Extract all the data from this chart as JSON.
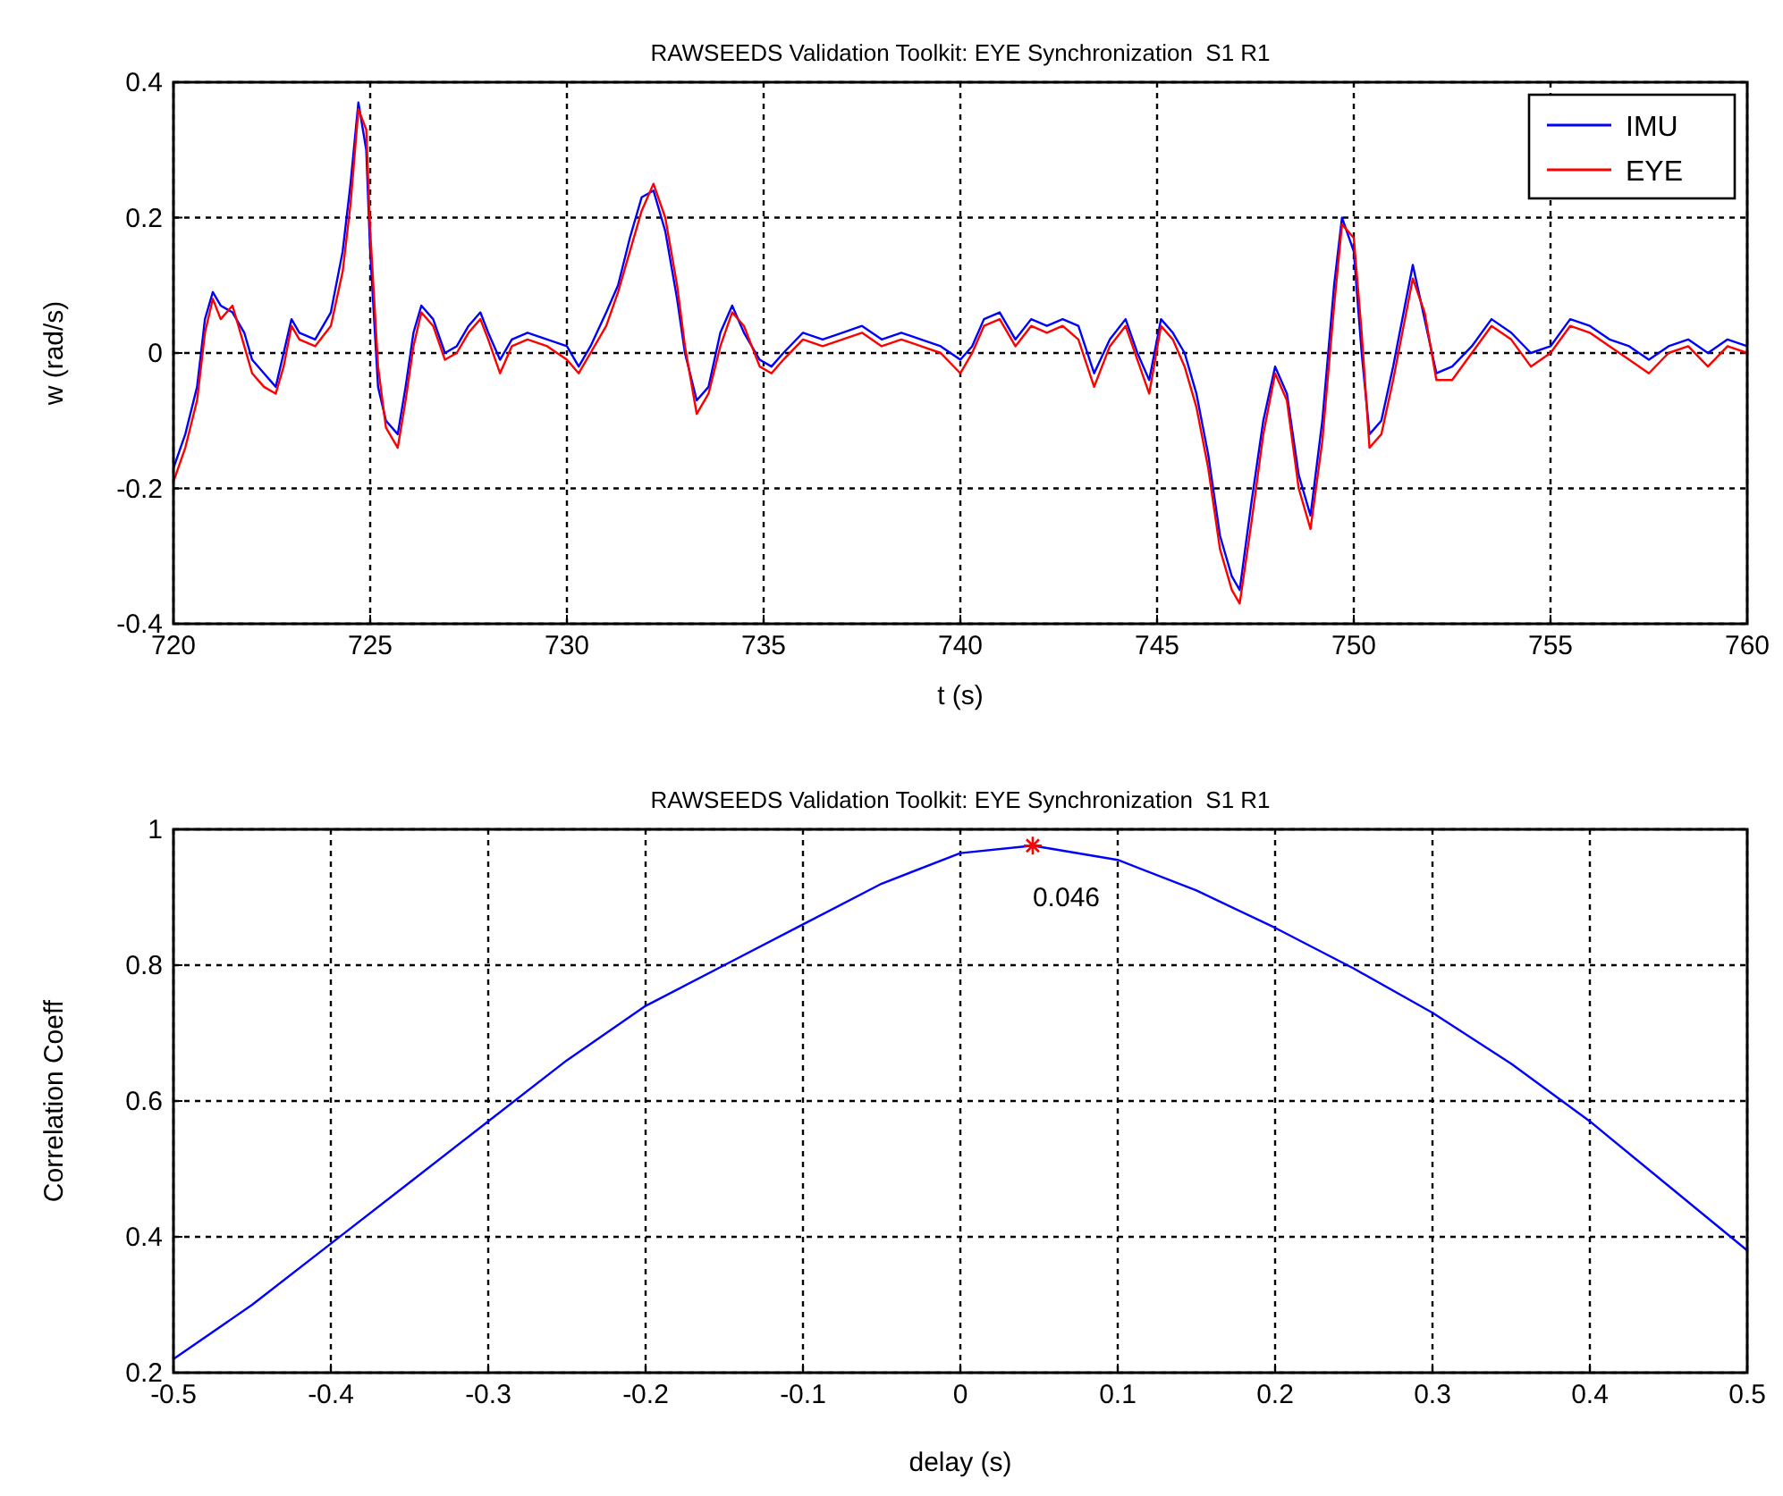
{
  "chart_data": [
    {
      "type": "line",
      "title": "RAWSEEDS Validation Toolkit: EYE Synchronization  S1 R1",
      "xlabel": "t (s)",
      "ylabel": "w (rad/s)",
      "xlim": [
        720,
        760
      ],
      "xticks": [
        720,
        725,
        730,
        735,
        740,
        745,
        750,
        755,
        760
      ],
      "ylim": [
        -0.4,
        0.4
      ],
      "yticks": [
        -0.4,
        -0.2,
        0,
        0.2,
        0.4
      ],
      "grid": true,
      "legend": "top right",
      "x": [
        720,
        720.3,
        720.6,
        720.8,
        721,
        721.2,
        721.5,
        721.8,
        722,
        722.3,
        722.6,
        722.8,
        723,
        723.2,
        723.6,
        724,
        724.3,
        724.5,
        724.7,
        724.9,
        725,
        725.2,
        725.4,
        725.7,
        725.9,
        726.1,
        726.3,
        726.6,
        726.9,
        727.2,
        727.5,
        727.8,
        728,
        728.3,
        728.6,
        729,
        729.5,
        730,
        730.3,
        730.6,
        731,
        731.3,
        731.6,
        731.9,
        732.2,
        732.5,
        732.8,
        733,
        733.3,
        733.6,
        733.9,
        734.2,
        734.5,
        734.9,
        735.2,
        735.5,
        736,
        736.5,
        737,
        737.5,
        738,
        738.5,
        739,
        739.5,
        740,
        740.3,
        740.6,
        741,
        741.4,
        741.8,
        742.2,
        742.6,
        743,
        743.4,
        743.8,
        744.2,
        744.5,
        744.8,
        745.1,
        745.4,
        745.7,
        746,
        746.3,
        746.6,
        746.9,
        747.1,
        747.4,
        747.7,
        748,
        748.3,
        748.6,
        748.9,
        749.2,
        749.5,
        749.7,
        750,
        750.2,
        750.4,
        750.7,
        751,
        751.3,
        751.5,
        751.8,
        752.1,
        752.5,
        753,
        753.5,
        754,
        754.5,
        755,
        755.5,
        756,
        756.5,
        757,
        757.5,
        758,
        758.5,
        759,
        759.5,
        760
      ],
      "series": [
        {
          "name": "IMU",
          "color": "#0000ff",
          "values": [
            -0.17,
            -0.12,
            -0.05,
            0.05,
            0.09,
            0.07,
            0.06,
            0.03,
            -0.01,
            -0.03,
            -0.05,
            0,
            0.05,
            0.03,
            0.02,
            0.06,
            0.15,
            0.25,
            0.37,
            0.3,
            0.15,
            -0.05,
            -0.1,
            -0.12,
            -0.05,
            0.03,
            0.07,
            0.05,
            0,
            0.01,
            0.04,
            0.06,
            0.03,
            -0.01,
            0.02,
            0.03,
            0.02,
            0.01,
            -0.02,
            0.01,
            0.06,
            0.1,
            0.17,
            0.23,
            0.24,
            0.18,
            0.08,
            0,
            -0.07,
            -0.05,
            0.03,
            0.07,
            0.03,
            -0.01,
            -0.02,
            0,
            0.03,
            0.02,
            0.03,
            0.04,
            0.02,
            0.03,
            0.02,
            0.01,
            -0.01,
            0.01,
            0.05,
            0.06,
            0.02,
            0.05,
            0.04,
            0.05,
            0.04,
            -0.03,
            0.02,
            0.05,
            0,
            -0.04,
            0.05,
            0.03,
            0,
            -0.06,
            -0.15,
            -0.27,
            -0.33,
            -0.35,
            -0.22,
            -0.1,
            -0.02,
            -0.06,
            -0.18,
            -0.24,
            -0.1,
            0.1,
            0.2,
            0.15,
            0,
            -0.12,
            -0.1,
            -0.02,
            0.07,
            0.13,
            0.05,
            -0.03,
            -0.02,
            0.01,
            0.05,
            0.03,
            0,
            0.01,
            0.05,
            0.04,
            0.02,
            0.01,
            -0.01,
            0.01,
            0.02,
            0,
            0.02,
            0.01
          ]
        },
        {
          "name": "EYE",
          "color": "#ff0000",
          "values": [
            -0.19,
            -0.14,
            -0.07,
            0.03,
            0.08,
            0.05,
            0.07,
            0.01,
            -0.03,
            -0.05,
            -0.06,
            -0.02,
            0.04,
            0.02,
            0.01,
            0.04,
            0.12,
            0.22,
            0.36,
            0.33,
            0.18,
            -0.02,
            -0.11,
            -0.14,
            -0.07,
            0.01,
            0.06,
            0.04,
            -0.01,
            0,
            0.03,
            0.05,
            0.02,
            -0.03,
            0.01,
            0.02,
            0.01,
            -0.01,
            -0.03,
            0,
            0.04,
            0.09,
            0.15,
            0.21,
            0.25,
            0.2,
            0.1,
            0.01,
            -0.09,
            -0.06,
            0.01,
            0.06,
            0.04,
            -0.02,
            -0.03,
            -0.01,
            0.02,
            0.01,
            0.02,
            0.03,
            0.01,
            0.02,
            0.01,
            0,
            -0.03,
            0,
            0.04,
            0.05,
            0.01,
            0.04,
            0.03,
            0.04,
            0.02,
            -0.05,
            0.01,
            0.04,
            -0.01,
            -0.06,
            0.04,
            0.02,
            -0.02,
            -0.08,
            -0.17,
            -0.29,
            -0.35,
            -0.37,
            -0.25,
            -0.12,
            -0.03,
            -0.07,
            -0.2,
            -0.26,
            -0.13,
            0.07,
            0.19,
            0.17,
            0.03,
            -0.14,
            -0.12,
            -0.04,
            0.05,
            0.11,
            0.06,
            -0.04,
            -0.04,
            0,
            0.04,
            0.02,
            -0.02,
            0,
            0.04,
            0.03,
            0.01,
            -0.01,
            -0.03,
            0,
            0.01,
            -0.02,
            0.01,
            0
          ]
        }
      ]
    },
    {
      "type": "line",
      "title": "RAWSEEDS Validation Toolkit: EYE Synchronization  S1 R1",
      "xlabel": "delay (s)",
      "ylabel": "Correlation Coeff",
      "xlim": [
        -0.5,
        0.5
      ],
      "xticks": [
        -0.5,
        -0.4,
        -0.3,
        -0.2,
        -0.1,
        0,
        0.1,
        0.2,
        0.3,
        0.4,
        0.5
      ],
      "ylim": [
        0.2,
        1
      ],
      "yticks": [
        0.2,
        0.4,
        0.6,
        0.8,
        1
      ],
      "grid": true,
      "annotations": [
        {
          "text": "0.046",
          "x": 0.046,
          "y": 0.976
        }
      ],
      "series": [
        {
          "color": "#0000ff",
          "x": [
            -0.5,
            -0.45,
            -0.4,
            -0.35,
            -0.3,
            -0.25,
            -0.2,
            -0.15,
            -0.1,
            -0.05,
            0,
            0.046,
            0.1,
            0.15,
            0.2,
            0.25,
            0.3,
            0.35,
            0.4,
            0.45,
            0.5
          ],
          "values": [
            0.22,
            0.3,
            0.39,
            0.48,
            0.57,
            0.66,
            0.74,
            0.8,
            0.86,
            0.92,
            0.965,
            0.976,
            0.955,
            0.91,
            0.855,
            0.795,
            0.73,
            0.655,
            0.57,
            0.475,
            0.38
          ]
        },
        {
          "type": "scatter",
          "marker": "cross",
          "color": "#ff0000",
          "x": [
            0.046
          ],
          "values": [
            0.976
          ]
        }
      ]
    }
  ]
}
